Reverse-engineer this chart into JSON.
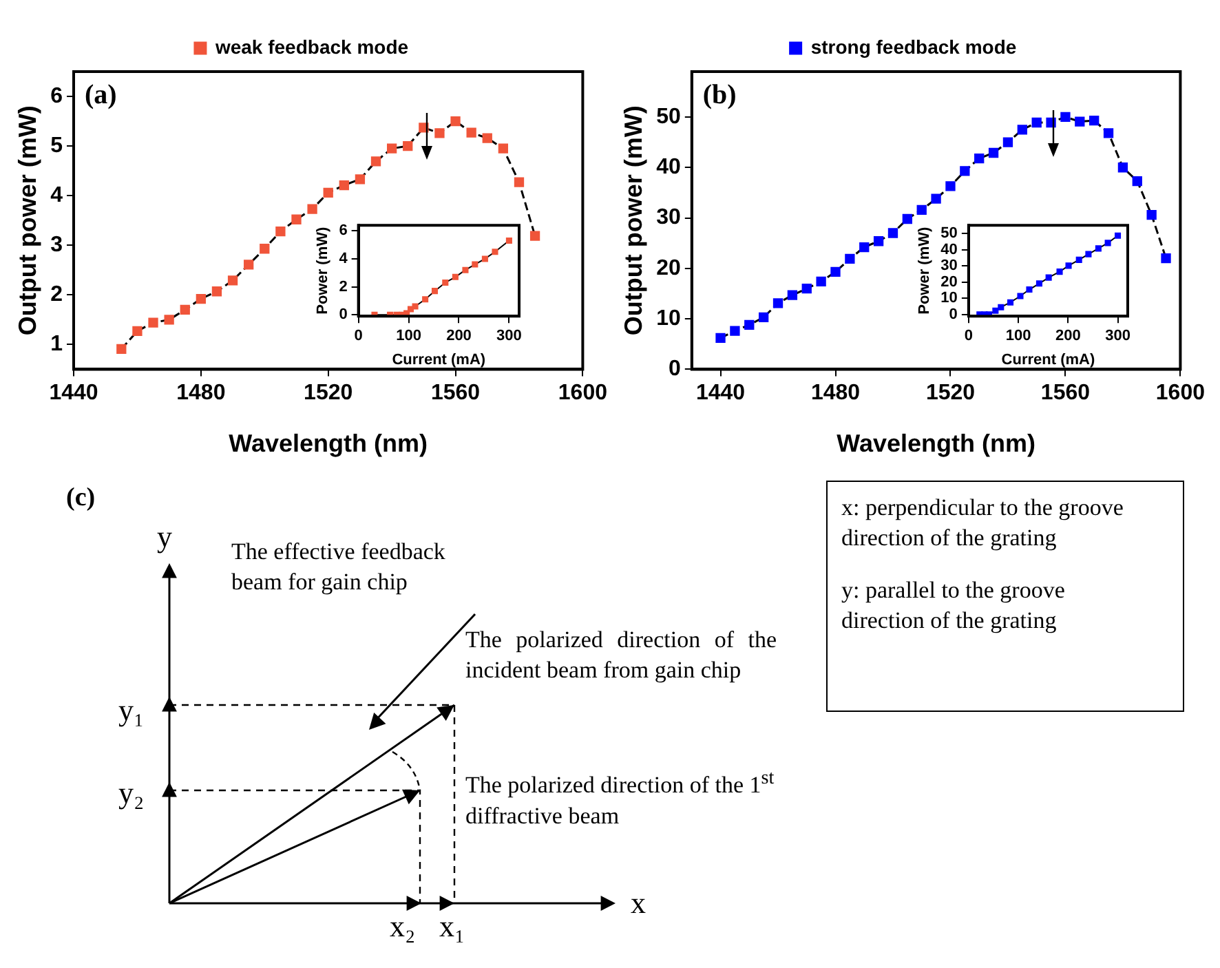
{
  "chart_data": [
    {
      "type": "line",
      "xlabel": "Wavelength (nm)",
      "ylabel": "Output power (mW)",
      "annotations": [
        "(a)"
      ],
      "legend": "top",
      "marker": "square",
      "line_style": "dashed",
      "xlim": [
        1440,
        1600
      ],
      "ylim": [
        0.5,
        6.5
      ],
      "xticks": [
        1440,
        1480,
        1520,
        1560,
        1600
      ],
      "yticks": [
        1,
        2,
        3,
        4,
        5,
        6
      ],
      "x": [
        1455,
        1460,
        1465,
        1470,
        1475,
        1480,
        1485,
        1490,
        1495,
        1500,
        1505,
        1510,
        1515,
        1520,
        1525,
        1530,
        1535,
        1540,
        1545,
        1550,
        1555,
        1560,
        1565,
        1570,
        1575,
        1580,
        1585
      ],
      "series": [
        {
          "name": "weak feedback mode",
          "color": "#f0553a",
          "values": [
            0.91,
            1.27,
            1.44,
            1.5,
            1.7,
            1.92,
            2.07,
            2.29,
            2.61,
            2.93,
            3.28,
            3.52,
            3.73,
            4.06,
            4.21,
            4.33,
            4.69,
            4.95,
            5.0,
            5.37,
            5.26,
            5.5,
            5.27,
            5.16,
            4.95,
            4.27,
            3.19
          ]
        }
      ]
    },
    {
      "type": "line",
      "xlabel": "Current (mA)",
      "ylabel": "Power (mW)",
      "marker": "square",
      "line_style": "solid",
      "xlim": [
        0,
        320
      ],
      "ylim": [
        -0.1,
        6.4
      ],
      "xticks": [
        0,
        100,
        200,
        300
      ],
      "yticks": [
        0,
        2,
        4,
        6
      ],
      "x": [
        32,
        63,
        76,
        87,
        96,
        104,
        113,
        133,
        152,
        173,
        193,
        213,
        232,
        252,
        272,
        300
      ],
      "series": [
        {
          "color": "#f0553a",
          "values": [
            0,
            0,
            0,
            0,
            0.1,
            0.4,
            0.6,
            1.1,
            1.7,
            2.3,
            2.7,
            3.2,
            3.6,
            4.0,
            4.5,
            5.3
          ]
        }
      ]
    },
    {
      "type": "line",
      "xlabel": "Wavelength (nm)",
      "ylabel": "Output power (mW)",
      "annotations": [
        "(b)"
      ],
      "legend": "top",
      "marker": "square",
      "line_style": "dashed",
      "xlim": [
        1430,
        1600
      ],
      "ylim": [
        0,
        59
      ],
      "xticks": [
        1440,
        1480,
        1520,
        1560,
        1600
      ],
      "yticks": [
        0,
        10,
        20,
        30,
        40,
        50
      ],
      "x": [
        1440,
        1445,
        1450,
        1455,
        1460,
        1465,
        1470,
        1475,
        1480,
        1485,
        1490,
        1495,
        1500,
        1505,
        1510,
        1515,
        1520,
        1525,
        1530,
        1535,
        1540,
        1545,
        1550,
        1555,
        1560,
        1565,
        1570,
        1575,
        1580,
        1585,
        1590,
        1595
      ],
      "series": [
        {
          "name": "strong feedback mode",
          "color": "#0000ff",
          "values": [
            6.2,
            7.6,
            8.8,
            10.3,
            13.1,
            14.7,
            16.0,
            17.4,
            19.3,
            21.9,
            24.2,
            25.4,
            27.0,
            29.8,
            31.6,
            33.8,
            36.3,
            39.3,
            41.8,
            42.9,
            45.0,
            47.5,
            48.9,
            48.9,
            50.0,
            49.1,
            49.3,
            46.8,
            40.0,
            37.3,
            30.6,
            22.0
          ]
        }
      ]
    },
    {
      "type": "line",
      "xlabel": "Current (mA)",
      "ylabel": "Power (mW)",
      "marker": "square",
      "line_style": "solid",
      "xlim": [
        0,
        320
      ],
      "ylim": [
        -1,
        55
      ],
      "xticks": [
        0,
        100,
        200,
        300
      ],
      "yticks": [
        0,
        10,
        20,
        30,
        40,
        50
      ],
      "x": [
        22,
        32,
        41,
        54,
        65,
        84,
        104,
        122,
        142,
        161,
        183,
        201,
        222,
        241,
        261,
        280,
        300
      ],
      "series": [
        {
          "color": "#0000ff",
          "values": [
            0,
            0,
            0,
            2.4,
            4.5,
            7.5,
            11.4,
            15.4,
            19.1,
            22.8,
            26.4,
            30.1,
            33.7,
            37.2,
            40.7,
            44.1,
            48.6
          ]
        }
      ]
    },
    {
      "type": "other",
      "annotations": [
        "(c)",
        "y",
        "x",
        "y₁",
        "y₂",
        "x₂",
        "x₁",
        "The effective feedback beam for gain chip",
        "The polarized direction of the incident beam from gain chip",
        "The polarized direction of the 1$^{st}$ diffractive beam",
        "x: perpendicular to the groove direction of the grating",
        "y: parallel to the groove direction of the grating"
      ]
    }
  ]
}
